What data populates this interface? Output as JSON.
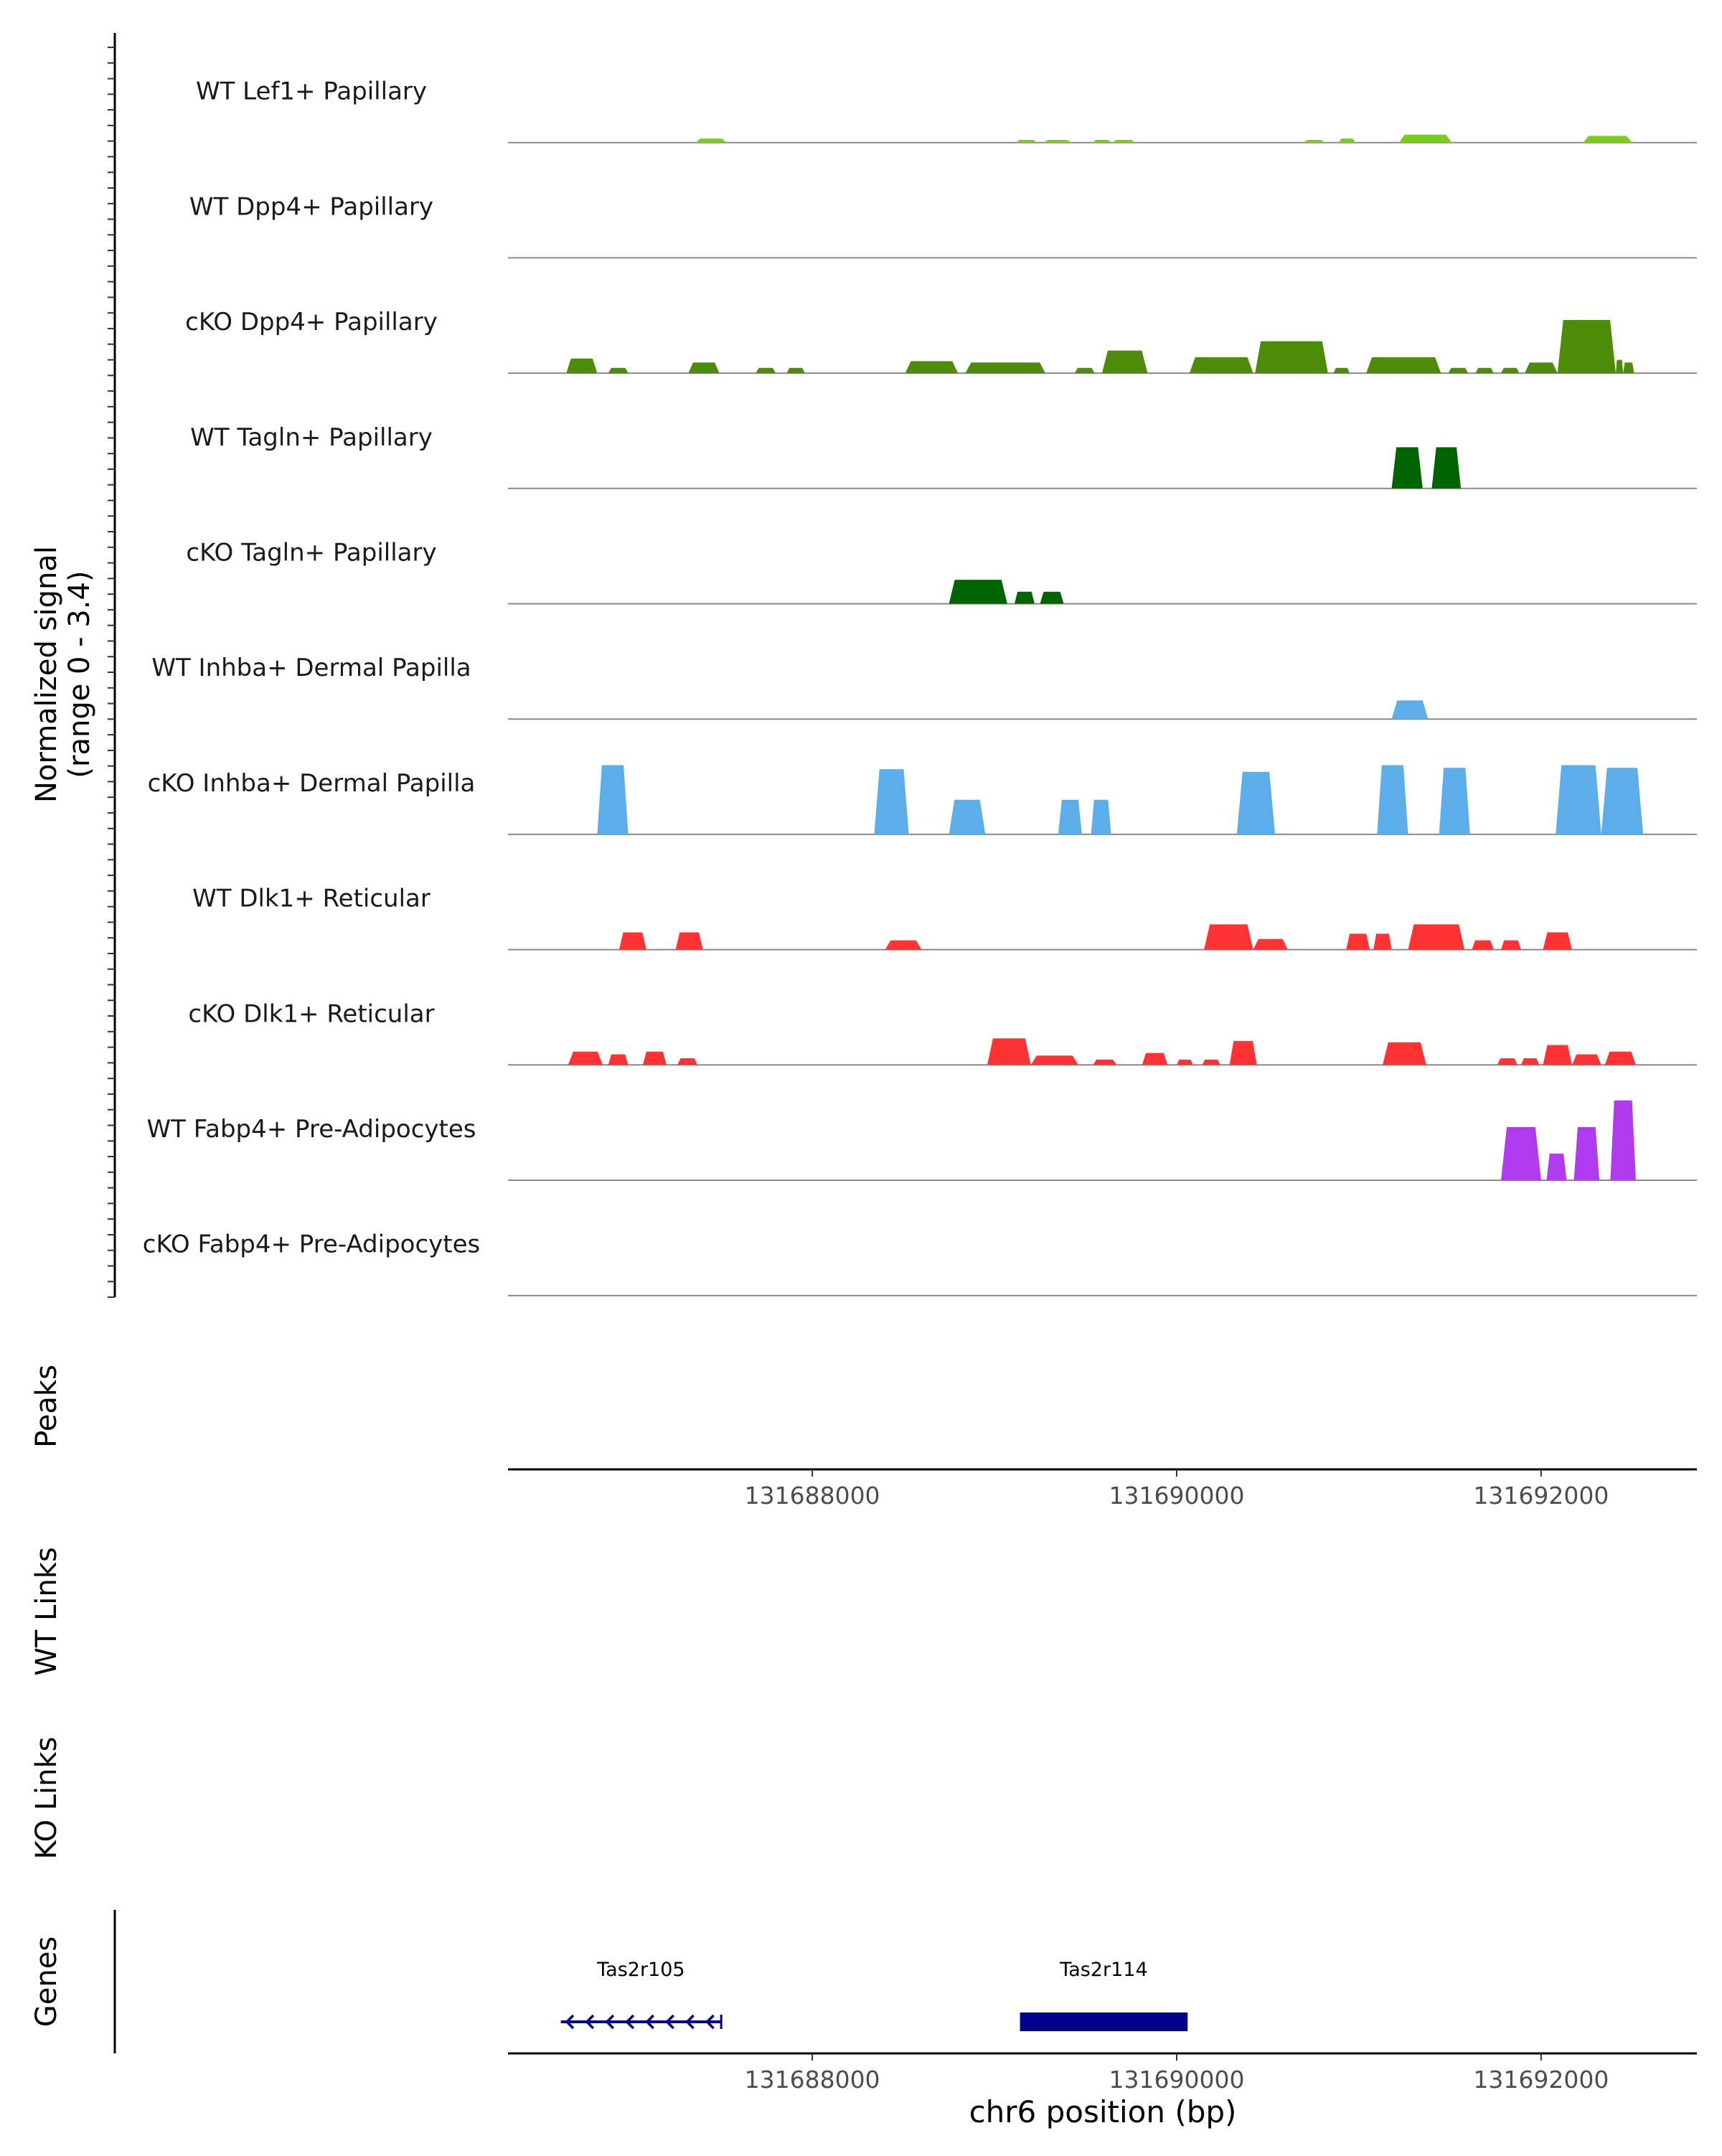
{
  "chart_data": {
    "type": "area",
    "title": "",
    "xlabel": "chr6 position (bp)",
    "xlim": [
      131686330,
      131692855
    ],
    "x_ticks": [
      131688000,
      131690000,
      131692000
    ],
    "x_tick_labels": [
      "131688000",
      "131690000",
      "131692000"
    ],
    "coverage": {
      "ylabel_line1": "Normalized signal",
      "ylabel_line2": "(range 0 - 3.4)",
      "ylim": [
        0,
        3.4
      ],
      "tracks": [
        {
          "name": "WT Lef1+ Papillary",
          "color": "#7ACC1E",
          "peaks": [
            [
              131687360,
              131687530,
              0.15
            ],
            [
              131689120,
              131689230,
              0.1
            ],
            [
              131689270,
              131689420,
              0.1
            ],
            [
              131689540,
              131689640,
              0.1
            ],
            [
              131689650,
              131689770,
              0.1
            ],
            [
              131690700,
              131690810,
              0.1
            ],
            [
              131690890,
              131690980,
              0.15
            ],
            [
              131691220,
              131691510,
              0.3
            ],
            [
              131692230,
              131692500,
              0.25
            ]
          ]
        },
        {
          "name": "WT Dpp4+ Papillary",
          "color": "#7ACC1E",
          "peaks": []
        },
        {
          "name": "cKO Dpp4+ Papillary",
          "color": "#4C8C08",
          "peaks": [
            [
              131686650,
              131686820,
              0.55
            ],
            [
              131686880,
              131686990,
              0.2
            ],
            [
              131687320,
              131687490,
              0.4
            ],
            [
              131687690,
              131687800,
              0.2
            ],
            [
              131687860,
              131687960,
              0.2
            ],
            [
              131688510,
              131688800,
              0.45
            ],
            [
              131688840,
              131689280,
              0.4
            ],
            [
              131689440,
              131689550,
              0.2
            ],
            [
              131689590,
              131689840,
              0.85
            ],
            [
              131690070,
              131690420,
              0.6
            ],
            [
              131690430,
              131690830,
              1.2
            ],
            [
              131690860,
              131690950,
              0.2
            ],
            [
              131691040,
              131691450,
              0.6
            ],
            [
              131691490,
              131691600,
              0.2
            ],
            [
              131691640,
              131691740,
              0.2
            ],
            [
              131691780,
              131691880,
              0.2
            ],
            [
              131691910,
              131692090,
              0.4
            ],
            [
              131692090,
              131692410,
              2.0
            ],
            [
              131692410,
              131692450,
              0.5
            ],
            [
              131692450,
              131692510,
              0.4
            ]
          ]
        },
        {
          "name": "WT Tagln+ Papillary",
          "color": "#006400",
          "peaks": [
            [
              131691180,
              131691350,
              1.55
            ],
            [
              131691400,
              131691560,
              1.55
            ]
          ]
        },
        {
          "name": "cKO Tagln+ Papillary",
          "color": "#006400",
          "peaks": [
            [
              131688750,
              131689070,
              0.9
            ],
            [
              131689110,
              131689220,
              0.45
            ],
            [
              131689250,
              131689380,
              0.45
            ]
          ]
        },
        {
          "name": "WT Inhba+ Dermal Papilla",
          "color": "#5BAEEA",
          "peaks": [
            [
              131691180,
              131691380,
              0.7
            ]
          ]
        },
        {
          "name": "cKO Inhba+ Dermal Papilla",
          "color": "#5BAEEA",
          "peaks": [
            [
              131686820,
              131686990,
              2.6
            ],
            [
              131688340,
              131688530,
              2.45
            ],
            [
              131688750,
              131688950,
              1.3
            ],
            [
              131689350,
              131689480,
              1.3
            ],
            [
              131689530,
              131689640,
              1.3
            ],
            [
              131690330,
              131690540,
              2.35
            ],
            [
              131691100,
              131691270,
              2.6
            ],
            [
              131691440,
              131691610,
              2.5
            ],
            [
              131692080,
              131692330,
              2.6
            ],
            [
              131692330,
              131692560,
              2.5
            ]
          ]
        },
        {
          "name": "WT Dlk1+ Reticular",
          "color": "#FF3333",
          "peaks": [
            [
              131686940,
              131687090,
              0.65
            ],
            [
              131687250,
              131687400,
              0.65
            ],
            [
              131688400,
              131688600,
              0.35
            ],
            [
              131690150,
              131690420,
              0.95
            ],
            [
              131690420,
              131690610,
              0.4
            ],
            [
              131690930,
              131691060,
              0.6
            ],
            [
              131691080,
              131691180,
              0.6
            ],
            [
              131691270,
              131691580,
              0.95
            ],
            [
              131691620,
              131691740,
              0.35
            ],
            [
              131691780,
              131691890,
              0.35
            ],
            [
              131692010,
              131692170,
              0.65
            ]
          ]
        },
        {
          "name": "cKO Dlk1+ Reticular",
          "color": "#FF3333",
          "peaks": [
            [
              131686660,
              131686850,
              0.5
            ],
            [
              131686880,
              131686990,
              0.4
            ],
            [
              131687070,
              131687200,
              0.5
            ],
            [
              131687260,
              131687370,
              0.25
            ],
            [
              131688960,
              131689200,
              1.0
            ],
            [
              131689200,
              131689460,
              0.35
            ],
            [
              131689540,
              131689670,
              0.2
            ],
            [
              131689810,
              131689950,
              0.45
            ],
            [
              131690000,
              131690090,
              0.2
            ],
            [
              131690140,
              131690240,
              0.2
            ],
            [
              131690290,
              131690440,
              0.9
            ],
            [
              131691130,
              131691370,
              0.85
            ],
            [
              131691760,
              131691870,
              0.25
            ],
            [
              131691890,
              131691990,
              0.25
            ],
            [
              131692010,
              131692170,
              0.75
            ],
            [
              131692170,
              131692330,
              0.4
            ],
            [
              131692350,
              131692520,
              0.5
            ]
          ]
        },
        {
          "name": "WT Fabp4+ Pre-Adipocytes",
          "color": "#B03BEE",
          "peaks": [
            [
              131691780,
              131692000,
              2.0
            ],
            [
              131692030,
              131692140,
              1.0
            ],
            [
              131692180,
              131692320,
              2.0
            ],
            [
              131692380,
              131692520,
              3.0
            ]
          ]
        },
        {
          "name": "cKO Fabp4+ Pre-Adipocytes",
          "color": "#B03BEE",
          "peaks": []
        }
      ]
    },
    "peaks_track_label": "Peaks",
    "wt_links_label": "WT Links",
    "ko_links_label": "KO Links",
    "genes": {
      "label": "Genes",
      "color": "#00008B",
      "items": [
        {
          "name": "Tas2r105",
          "start": 131686620,
          "end": 131687500,
          "strand": "-"
        },
        {
          "name": "Tas2r114",
          "start": 131689140,
          "end": 131690060,
          "strand": "+"
        }
      ]
    }
  }
}
